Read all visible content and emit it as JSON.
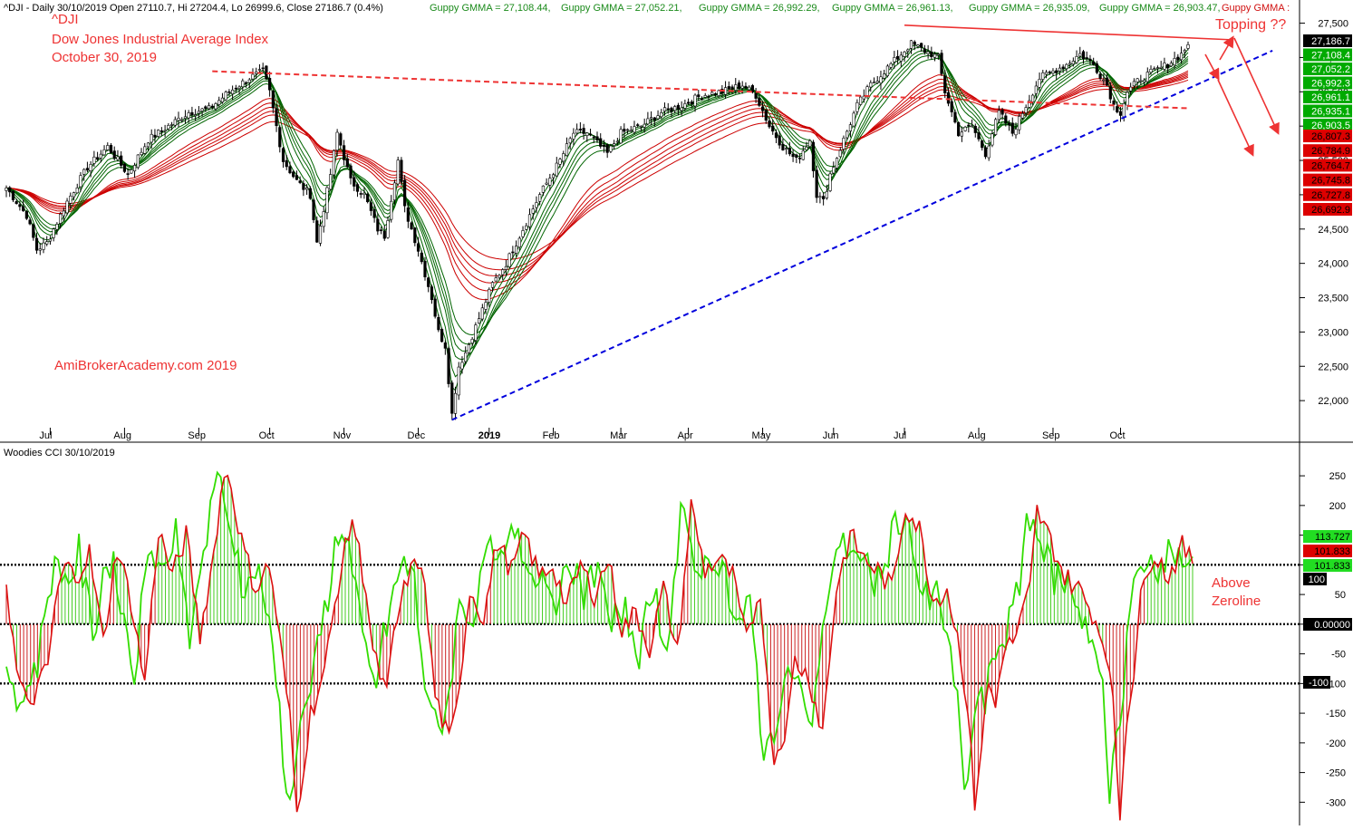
{
  "header": {
    "title_prefix": "^DJI - Daily 30/10/2019 Open 27110.7, Hi 27204.4, Lo 26999.6, Close 27186.7 (0.4%)",
    "gmma_items": [
      "Guppy GMMA = 27,108.44,",
      "Guppy GMMA = 27,052.21,",
      "Guppy GMMA = 26,992.29,",
      "Guppy GMMA = 26,961.13,",
      "Guppy GMMA = 26,935.09,",
      "Guppy GMMA = 26,903.47,",
      "Guppy GMMA :"
    ]
  },
  "annotations": {
    "ticker": "^DJI",
    "index_name": "Dow Jones Industrial Average Index",
    "date": "October 30, 2019",
    "watermark": "AmiBrokerAcademy.com   2019",
    "topping": "Topping ??",
    "above_line1": "Above",
    "above_line2": "Zeroline"
  },
  "colors": {
    "green_short": "#006400",
    "red_long": "#cc0000",
    "cci_green": "#33dd00",
    "cci_red": "#dd1111",
    "trend_blue": "#0000dd",
    "annot_red": "#ee3333",
    "grid_black": "#000000"
  },
  "chart_data": [
    {
      "type": "line",
      "title": "^DJI - Daily 30/10/2019",
      "x_labels": [
        "Jul",
        "Aug",
        "Sep",
        "Oct",
        "Nov",
        "Dec",
        "2019",
        "Feb",
        "Mar",
        "Apr",
        "May",
        "Jun",
        "Jul",
        "Aug",
        "Sep",
        "Oct"
      ],
      "x_label_index": [
        13,
        35,
        57,
        78,
        100,
        122,
        143,
        162,
        182,
        202,
        224,
        245,
        266,
        288,
        310,
        330
      ],
      "ylim": [
        21500,
        27600
      ],
      "y_ticks": [
        22000,
        22500,
        23000,
        23500,
        24000,
        24500,
        25000,
        25500,
        26000,
        26500,
        27000,
        27500
      ],
      "close_anchors": [
        [
          0,
          25100
        ],
        [
          6,
          24700
        ],
        [
          9,
          24200
        ],
        [
          12,
          24300
        ],
        [
          18,
          24900
        ],
        [
          24,
          25400
        ],
        [
          30,
          25700
        ],
        [
          36,
          25300
        ],
        [
          42,
          25800
        ],
        [
          48,
          26000
        ],
        [
          54,
          26200
        ],
        [
          60,
          26250
        ],
        [
          66,
          26500
        ],
        [
          72,
          26700
        ],
        [
          76,
          26800
        ],
        [
          78,
          26500
        ],
        [
          82,
          25500
        ],
        [
          86,
          25200
        ],
        [
          90,
          25000
        ],
        [
          92,
          24300
        ],
        [
          96,
          25300
        ],
        [
          98,
          25900
        ],
        [
          102,
          25200
        ],
        [
          106,
          25000
        ],
        [
          110,
          24500
        ],
        [
          112,
          24400
        ],
        [
          116,
          25500
        ],
        [
          118,
          24800
        ],
        [
          122,
          24200
        ],
        [
          126,
          23500
        ],
        [
          128,
          23000
        ],
        [
          130,
          22800
        ],
        [
          132,
          21800
        ],
        [
          134,
          22500
        ],
        [
          136,
          22700
        ],
        [
          140,
          23200
        ],
        [
          144,
          23700
        ],
        [
          148,
          24000
        ],
        [
          152,
          24400
        ],
        [
          158,
          25000
        ],
        [
          164,
          25500
        ],
        [
          168,
          25900
        ],
        [
          172,
          25900
        ],
        [
          178,
          25600
        ],
        [
          182,
          25900
        ],
        [
          188,
          26000
        ],
        [
          194,
          26200
        ],
        [
          200,
          26300
        ],
        [
          206,
          26450
        ],
        [
          212,
          26500
        ],
        [
          218,
          26600
        ],
        [
          222,
          26450
        ],
        [
          226,
          26000
        ],
        [
          230,
          25700
        ],
        [
          234,
          25500
        ],
        [
          238,
          25800
        ],
        [
          240,
          25000
        ],
        [
          242,
          24900
        ],
        [
          244,
          25300
        ],
        [
          248,
          25800
        ],
        [
          252,
          26300
        ],
        [
          256,
          26600
        ],
        [
          260,
          26800
        ],
        [
          264,
          27000
        ],
        [
          268,
          27200
        ],
        [
          272,
          27100
        ],
        [
          276,
          27000
        ],
        [
          278,
          26500
        ],
        [
          280,
          26200
        ],
        [
          282,
          25900
        ],
        [
          286,
          26000
        ],
        [
          290,
          25600
        ],
        [
          294,
          26200
        ],
        [
          298,
          25900
        ],
        [
          302,
          26300
        ],
        [
          306,
          26700
        ],
        [
          310,
          26800
        ],
        [
          314,
          26900
        ],
        [
          318,
          27050
        ],
        [
          322,
          26900
        ],
        [
          326,
          26600
        ],
        [
          328,
          26300
        ],
        [
          330,
          26200
        ],
        [
          332,
          26500
        ],
        [
          336,
          26700
        ],
        [
          340,
          26800
        ],
        [
          344,
          26900
        ],
        [
          348,
          27050
        ],
        [
          350,
          27186.7
        ]
      ],
      "gmma_short_periods": [
        3,
        5,
        8,
        10,
        12,
        15
      ],
      "gmma_long_periods": [
        30,
        35,
        40,
        45,
        50,
        60
      ],
      "price_labels_green": [
        "27,186.7",
        "27,108.4",
        "27,052.2",
        "26,992.3",
        "26,961.1",
        "26,935.1",
        "26,903.5"
      ],
      "price_labels_red": [
        "26,807.3",
        "26,784.9",
        "26,764.7",
        "26,745.8",
        "26,727.8",
        "26,692.9"
      ],
      "trendlines": [
        {
          "name": "rising-support",
          "style": "dashed",
          "color": "#0000dd",
          "from": [
            132,
            21720
          ],
          "to": [
            375,
            27100
          ]
        },
        {
          "name": "resistance-upper",
          "style": "dashed",
          "color": "#ee3333",
          "from": [
            61,
            26800
          ],
          "to": [
            350,
            26260
          ]
        },
        {
          "name": "topping-line",
          "style": "solid",
          "color": "#ee3333",
          "from": [
            266,
            27470
          ],
          "to": [
            362,
            27260
          ]
        }
      ]
    },
    {
      "type": "line",
      "title": "Woodies CCI  30/10/2019",
      "ylim": [
        -330,
        270
      ],
      "y_ticks": [
        250,
        200,
        150,
        100,
        50,
        0,
        -50,
        -100,
        -150,
        -200,
        -250,
        -300
      ],
      "reference_lines": [
        100,
        0,
        -100
      ],
      "cci_anchors": [
        [
          0,
          70
        ],
        [
          3,
          -80
        ],
        [
          6,
          -140
        ],
        [
          9,
          -110
        ],
        [
          12,
          -70
        ],
        [
          14,
          30
        ],
        [
          17,
          100
        ],
        [
          20,
          80
        ],
        [
          24,
          120
        ],
        [
          28,
          -30
        ],
        [
          32,
          130
        ],
        [
          36,
          40
        ],
        [
          40,
          -100
        ],
        [
          44,
          160
        ],
        [
          48,
          80
        ],
        [
          52,
          150
        ],
        [
          56,
          -20
        ],
        [
          60,
          120
        ],
        [
          62,
          220
        ],
        [
          64,
          260
        ],
        [
          68,
          140
        ],
        [
          72,
          60
        ],
        [
          76,
          100
        ],
        [
          78,
          20
        ],
        [
          82,
          -160
        ],
        [
          84,
          -320
        ],
        [
          88,
          -150
        ],
        [
          92,
          -80
        ],
        [
          96,
          70
        ],
        [
          100,
          180
        ],
        [
          104,
          60
        ],
        [
          106,
          -50
        ],
        [
          110,
          -120
        ],
        [
          112,
          -20
        ],
        [
          116,
          80
        ],
        [
          120,
          110
        ],
        [
          124,
          -120
        ],
        [
          128,
          -200
        ],
        [
          130,
          -150
        ],
        [
          134,
          60
        ],
        [
          138,
          10
        ],
        [
          142,
          140
        ],
        [
          146,
          90
        ],
        [
          150,
          150
        ],
        [
          154,
          80
        ],
        [
          158,
          100
        ],
        [
          162,
          30
        ],
        [
          166,
          100
        ],
        [
          170,
          50
        ],
        [
          174,
          110
        ],
        [
          178,
          -10
        ],
        [
          182,
          20
        ],
        [
          186,
          -40
        ],
        [
          190,
          60
        ],
        [
          194,
          -50
        ],
        [
          198,
          200
        ],
        [
          202,
          90
        ],
        [
          206,
          110
        ],
        [
          210,
          80
        ],
        [
          214,
          -30
        ],
        [
          218,
          60
        ],
        [
          220,
          -100
        ],
        [
          222,
          -230
        ],
        [
          226,
          -160
        ],
        [
          228,
          -60
        ],
        [
          232,
          -90
        ],
        [
          236,
          -180
        ],
        [
          238,
          -60
        ],
        [
          240,
          60
        ],
        [
          244,
          150
        ],
        [
          248,
          110
        ],
        [
          252,
          90
        ],
        [
          256,
          60
        ],
        [
          260,
          200
        ],
        [
          264,
          160
        ],
        [
          268,
          40
        ],
        [
          272,
          60
        ],
        [
          276,
          -50
        ],
        [
          278,
          -150
        ],
        [
          280,
          -300
        ],
        [
          284,
          -100
        ],
        [
          286,
          -140
        ],
        [
          288,
          -50
        ],
        [
          292,
          -20
        ],
        [
          296,
          60
        ],
        [
          298,
          190
        ],
        [
          302,
          140
        ],
        [
          306,
          80
        ],
        [
          310,
          60
        ],
        [
          314,
          20
        ],
        [
          318,
          -40
        ],
        [
          320,
          -140
        ],
        [
          322,
          -320
        ],
        [
          324,
          -150
        ],
        [
          326,
          -80
        ],
        [
          328,
          40
        ],
        [
          330,
          100
        ],
        [
          332,
          120
        ],
        [
          336,
          80
        ],
        [
          340,
          130
        ],
        [
          343,
          101.833
        ]
      ],
      "turbo_cci_last": 113.727,
      "value_labels": [
        "113.727",
        "101.833",
        "101.833",
        "100",
        "0.00000",
        "-100"
      ]
    }
  ]
}
